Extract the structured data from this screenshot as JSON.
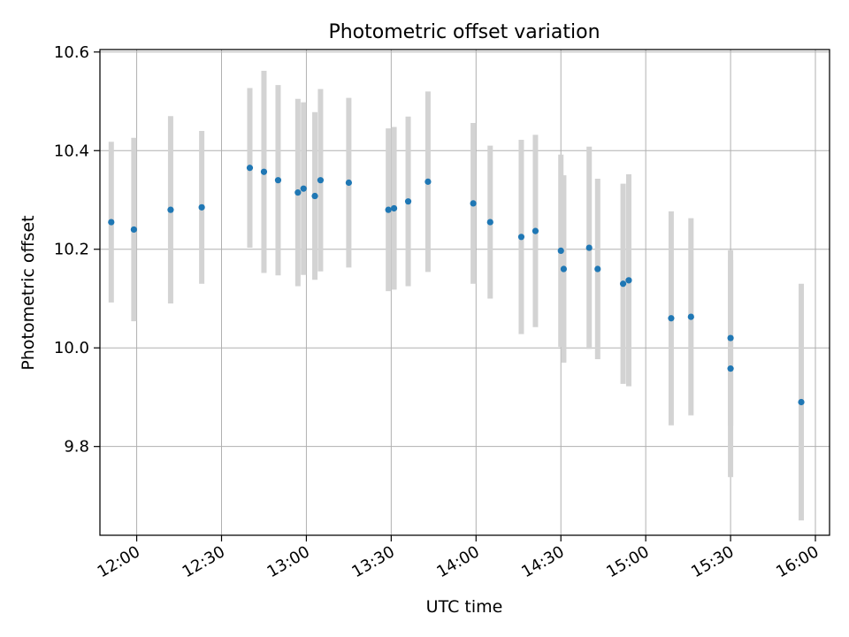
{
  "chart_data": {
    "type": "scatter",
    "title": "Photometric offset variation",
    "xlabel": "UTC time",
    "ylabel": "Photometric offset",
    "x_unit": "UTC time of day (HH:MM)",
    "xlim": [
      "11:47",
      "16:05"
    ],
    "ylim": [
      9.62,
      10.605
    ],
    "x_ticks": [
      "12:00",
      "12:30",
      "13:00",
      "13:30",
      "14:00",
      "14:30",
      "15:00",
      "15:30",
      "16:00"
    ],
    "y_ticks": [
      "9.8",
      "10.0",
      "10.2",
      "10.4",
      "10.6"
    ],
    "grid": true,
    "legend": "none",
    "colors": {
      "point": "#1f77b4",
      "errorbar": "#d3d3d3",
      "grid": "#b0b0b0"
    },
    "points": [
      {
        "x": "11:51",
        "y": 10.255,
        "err": 0.163
      },
      {
        "x": "11:59",
        "y": 10.24,
        "err": 0.186
      },
      {
        "x": "12:12",
        "y": 10.28,
        "err": 0.19
      },
      {
        "x": "12:23",
        "y": 10.285,
        "err": 0.155
      },
      {
        "x": "12:40",
        "y": 10.365,
        "err": 0.162
      },
      {
        "x": "12:45",
        "y": 10.357,
        "err": 0.205
      },
      {
        "x": "12:50",
        "y": 10.34,
        "err": 0.193
      },
      {
        "x": "12:57",
        "y": 10.315,
        "err": 0.19
      },
      {
        "x": "12:59",
        "y": 10.323,
        "err": 0.175
      },
      {
        "x": "13:03",
        "y": 10.308,
        "err": 0.17
      },
      {
        "x": "13:05",
        "y": 10.34,
        "err": 0.185
      },
      {
        "x": "13:15",
        "y": 10.335,
        "err": 0.172
      },
      {
        "x": "13:29",
        "y": 10.28,
        "err": 0.165
      },
      {
        "x": "13:31",
        "y": 10.283,
        "err": 0.165
      },
      {
        "x": "13:36",
        "y": 10.297,
        "err": 0.172
      },
      {
        "x": "13:43",
        "y": 10.337,
        "err": 0.183
      },
      {
        "x": "13:59",
        "y": 10.293,
        "err": 0.163
      },
      {
        "x": "14:05",
        "y": 10.255,
        "err": 0.155
      },
      {
        "x": "14:16",
        "y": 10.225,
        "err": 0.197
      },
      {
        "x": "14:21",
        "y": 10.237,
        "err": 0.195
      },
      {
        "x": "14:30",
        "y": 10.197,
        "err": 0.195
      },
      {
        "x": "14:31",
        "y": 10.16,
        "err": 0.19
      },
      {
        "x": "14:40",
        "y": 10.203,
        "err": 0.205
      },
      {
        "x": "14:43",
        "y": 10.16,
        "err": 0.183
      },
      {
        "x": "14:52",
        "y": 10.13,
        "err": 0.203
      },
      {
        "x": "14:54",
        "y": 10.137,
        "err": 0.215
      },
      {
        "x": "15:09",
        "y": 10.06,
        "err": 0.217
      },
      {
        "x": "15:16",
        "y": 10.063,
        "err": 0.2
      },
      {
        "x": "15:30",
        "y": 10.02,
        "err": 0.178
      },
      {
        "x": "15:30",
        "y": 9.958,
        "err": 0.22
      },
      {
        "x": "15:55",
        "y": 9.89,
        "err": 0.24
      }
    ]
  }
}
